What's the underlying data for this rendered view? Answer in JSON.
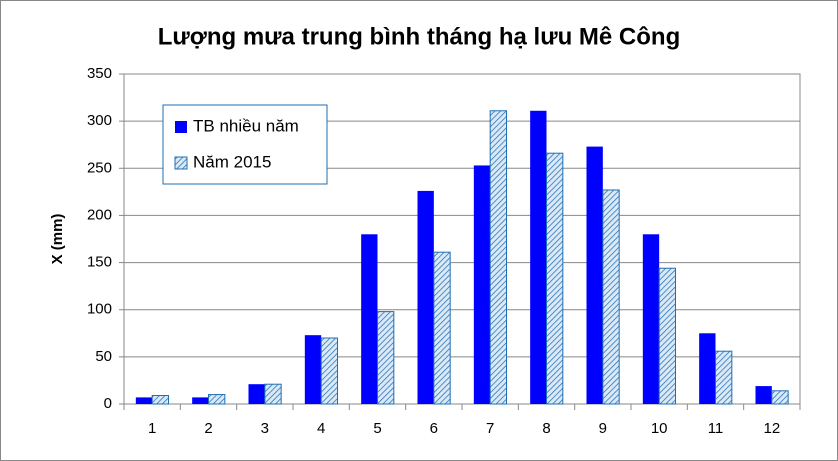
{
  "chart_data": {
    "type": "bar",
    "title": "Lượng mưa trung bình tháng hạ lưu Mê Công",
    "y_label": "X (mm)",
    "categories": [
      "1",
      "2",
      "3",
      "4",
      "5",
      "6",
      "7",
      "8",
      "9",
      "10",
      "11",
      "12"
    ],
    "series": [
      {
        "name": "TB nhiều năm",
        "color": "#0000ff",
        "pattern": "solid",
        "values": [
          7,
          7,
          21,
          73,
          180,
          226,
          253,
          311,
          273,
          180,
          75,
          19
        ]
      },
      {
        "name": "Năm 2015",
        "color": "#1f6fb4",
        "pattern": "hatch",
        "values": [
          9,
          10,
          21,
          70,
          98,
          161,
          311,
          266,
          227,
          144,
          56,
          14
        ]
      }
    ],
    "ylim": [
      0,
      350
    ],
    "yticks": [
      0,
      50,
      100,
      150,
      200,
      250,
      300,
      350
    ],
    "grid": true,
    "legend": "top-left"
  }
}
